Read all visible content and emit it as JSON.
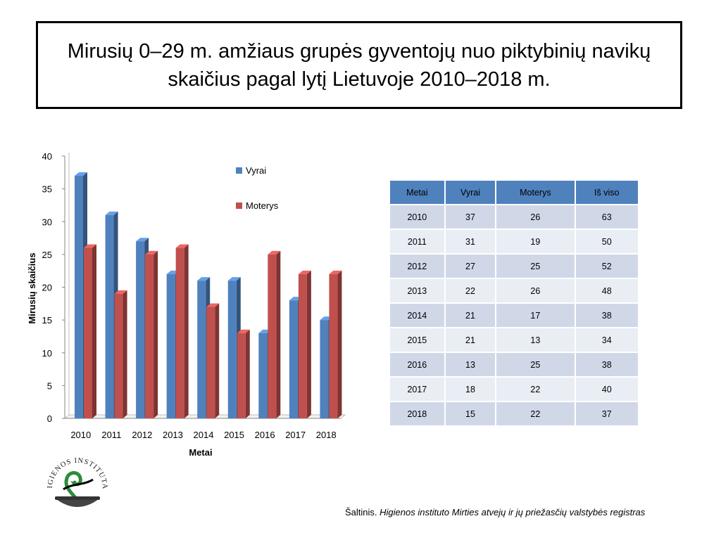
{
  "title": "Mirusių 0–29 m. amžiaus grupės gyventojų nuo piktybinių navikų skaičius pagal lytį Lietuvoje 2010–2018 m.",
  "chart_data": {
    "type": "bar",
    "categories": [
      "2010",
      "2011",
      "2012",
      "2013",
      "2014",
      "2015",
      "2016",
      "2017",
      "2018"
    ],
    "series": [
      {
        "name": "Vyrai",
        "values": [
          37,
          31,
          27,
          22,
          21,
          21,
          13,
          18,
          15
        ],
        "color": "#4f81bd"
      },
      {
        "name": "Moterys",
        "values": [
          26,
          19,
          25,
          26,
          17,
          13,
          25,
          22,
          22
        ],
        "color": "#c0504d"
      }
    ],
    "xlabel": "Metai",
    "ylabel": "Mirusių skaičius",
    "ylim": [
      0,
      40
    ],
    "yticks": [
      "0",
      "5",
      "10",
      "15",
      "20",
      "25",
      "30",
      "35",
      "40"
    ],
    "legend_position": "top-right",
    "grid": false
  },
  "table": {
    "headers": [
      "Metai",
      "Vyrai",
      "Moterys",
      "Iš viso"
    ],
    "rows": [
      [
        "2010",
        "37",
        "26",
        "63"
      ],
      [
        "2011",
        "31",
        "19",
        "50"
      ],
      [
        "2012",
        "27",
        "25",
        "52"
      ],
      [
        "2013",
        "22",
        "26",
        "48"
      ],
      [
        "2014",
        "21",
        "17",
        "38"
      ],
      [
        "2015",
        "21",
        "13",
        "34"
      ],
      [
        "2016",
        "13",
        "25",
        "38"
      ],
      [
        "2017",
        "18",
        "22",
        "40"
      ],
      [
        "2018",
        "15",
        "22",
        "37"
      ]
    ]
  },
  "source": {
    "prefix": "Šaltinis. ",
    "italic": "Higienos instituto  Mirties atvejų ir jų priežasčių valstybės registras"
  },
  "logo": {
    "text": "HIGIENOS INSTITUTAS"
  },
  "colors": {
    "table_header": "#4f81bd",
    "table_row_odd": "#d0d8e8",
    "table_row_even": "#e9edf4"
  }
}
